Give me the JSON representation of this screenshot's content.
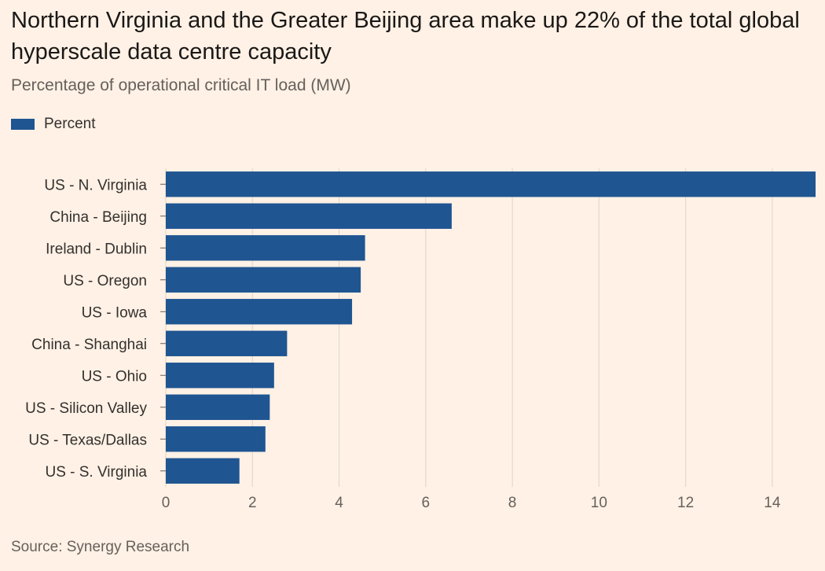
{
  "header": {
    "title": "Northern Virginia and the Greater Beijing area make up 22% of the total global hyperscale data centre capacity",
    "subtitle": "Percentage of operational critical IT load (MW)"
  },
  "legend": {
    "label": "Percent"
  },
  "footer": {
    "source": "Source: Synergy Research"
  },
  "colors": {
    "bar": "#1f5591",
    "background": "#fff1e5",
    "grid": "#e3d8ce"
  },
  "chart_data": {
    "type": "bar",
    "orientation": "horizontal",
    "title": "Northern Virginia and the Greater Beijing area make up 22% of the total global hyperscale data centre capacity",
    "subtitle": "Percentage of operational critical IT load (MW)",
    "xlabel": "",
    "ylabel": "",
    "legend": [
      "Percent"
    ],
    "legend_position": "top-left",
    "grid": true,
    "xlim": [
      0,
      15
    ],
    "xticks": [
      0,
      2,
      4,
      6,
      8,
      10,
      12,
      14
    ],
    "categories": [
      "US - N. Virginia",
      "China - Beijing",
      "Ireland - Dublin",
      "US - Oregon",
      "US - Iowa",
      "China - Shanghai",
      "US - Ohio",
      "US - Silicon Valley",
      "US - Texas/Dallas",
      "US - S. Virginia"
    ],
    "series": [
      {
        "name": "Percent",
        "values": [
          15.0,
          6.6,
          4.6,
          4.5,
          4.3,
          2.8,
          2.5,
          2.4,
          2.3,
          1.7
        ]
      }
    ]
  }
}
